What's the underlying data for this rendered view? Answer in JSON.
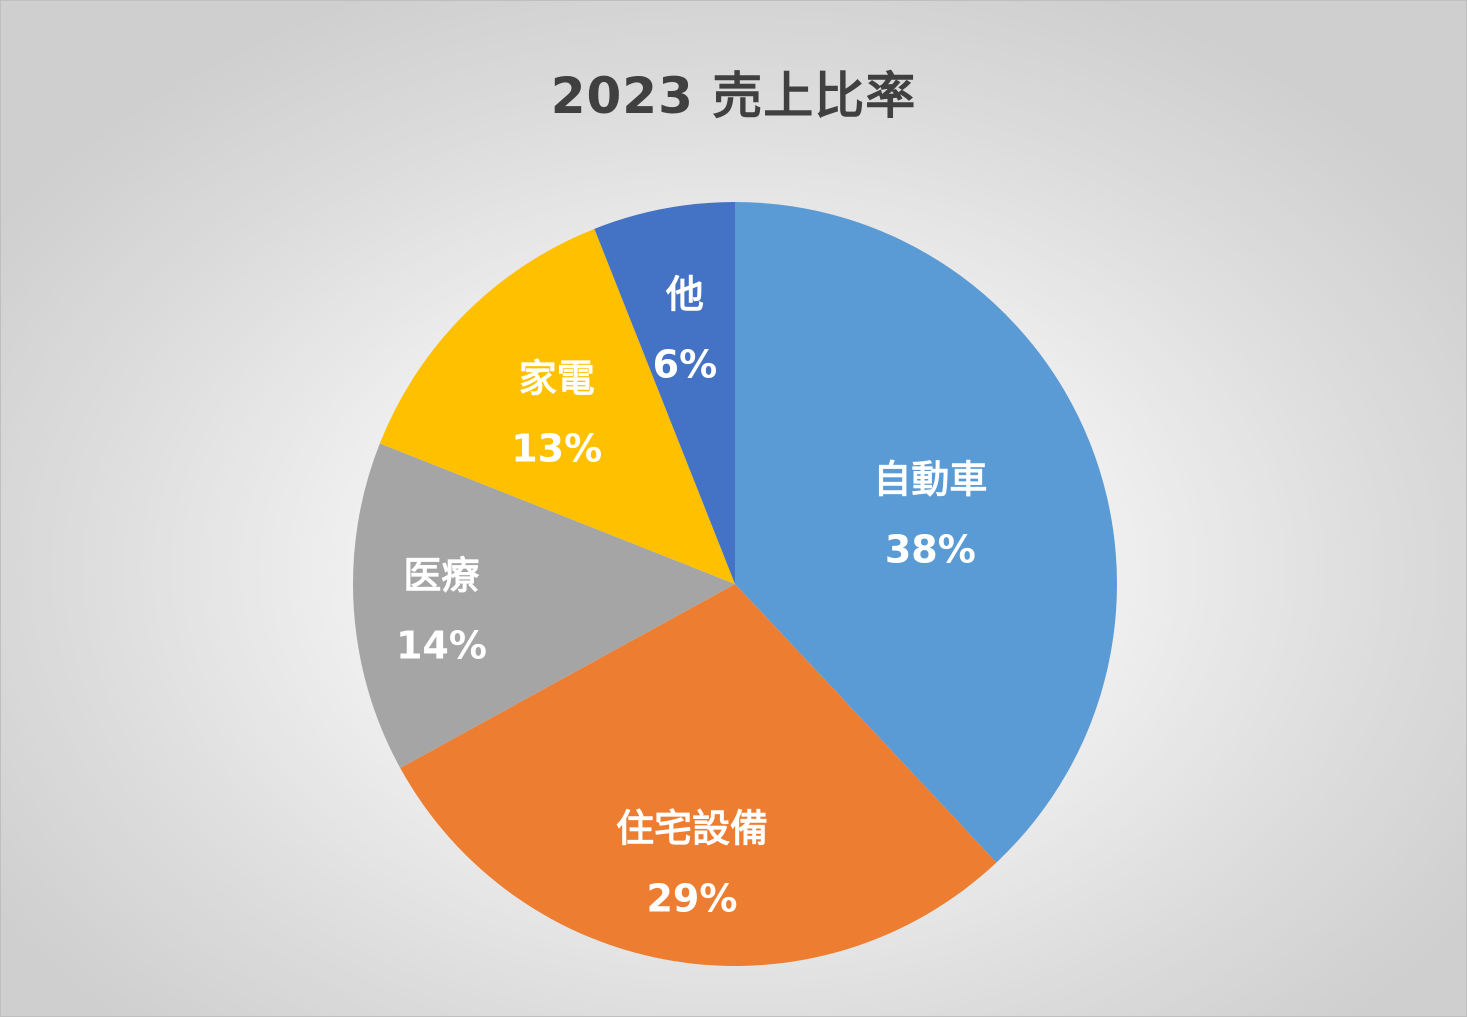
{
  "chart_data": {
    "type": "pie",
    "title": "2023 売上比率",
    "categories": [
      "自動車",
      "住宅設備",
      "医療",
      "家電",
      "他"
    ],
    "values": [
      38,
      29,
      14,
      13,
      6
    ],
    "value_labels": [
      "38%",
      "29%",
      "14%",
      "13%",
      "6%"
    ],
    "colors": [
      "#5b9bd5",
      "#ed7d31",
      "#a5a5a5",
      "#ffc000",
      "#4472c4"
    ],
    "start_angle_deg": 0,
    "direction": "clockwise",
    "legend": "none"
  }
}
